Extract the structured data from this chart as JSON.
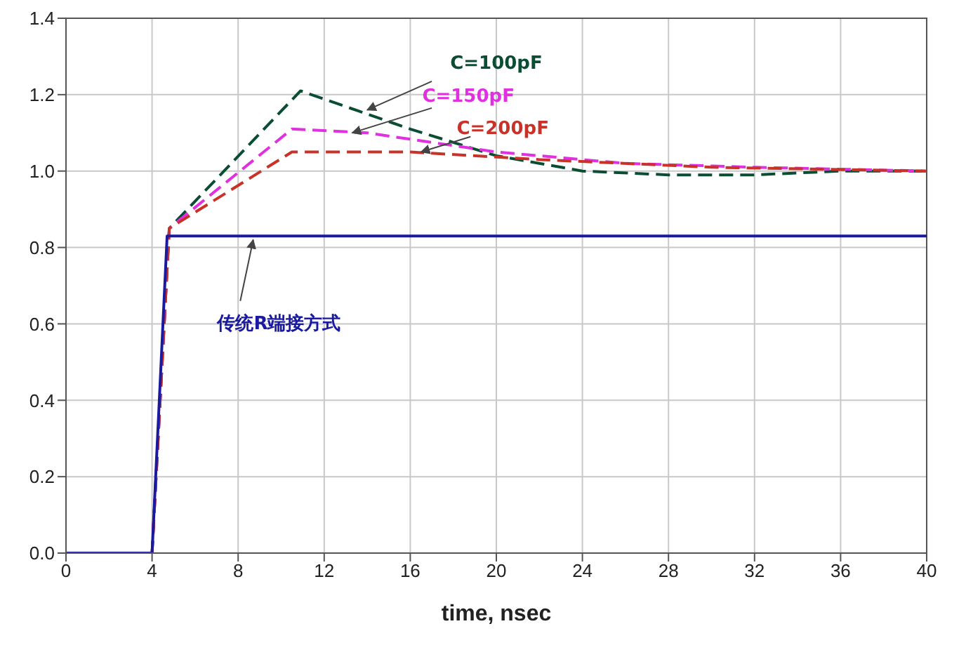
{
  "chart_data": {
    "type": "line",
    "xlabel": "time, nsec",
    "xlim": [
      0,
      40
    ],
    "xticks": [
      0,
      4,
      8,
      12,
      16,
      20,
      24,
      28,
      32,
      36,
      40
    ],
    "ylim": [
      0,
      1.4
    ],
    "yticks": [
      {
        "value": 0,
        "label": "0.0"
      },
      {
        "value": 0.2,
        "label": "0.2"
      },
      {
        "value": 0.4,
        "label": "0.4"
      },
      {
        "value": 0.6,
        "label": "0.6"
      },
      {
        "value": 0.8,
        "label": "0.8"
      },
      {
        "value": 1.0,
        "label": "1.0"
      },
      {
        "value": 1.2,
        "label": "1.2"
      },
      {
        "value": 1.4,
        "label": "1.4"
      }
    ],
    "grid": true,
    "legend": false,
    "marker": "none",
    "series": [
      {
        "name": "C=100pF",
        "color": "#0b4d33",
        "line_style": "dashed",
        "x": [
          0,
          4,
          4.8,
          10.9,
          16,
          20,
          24,
          28,
          32,
          36,
          40
        ],
        "values": [
          0,
          0,
          0.85,
          1.21,
          1.11,
          1.04,
          1.0,
          0.99,
          0.99,
          1.0,
          1.0
        ]
      },
      {
        "name": "C=150pF",
        "color": "#e030e0",
        "line_style": "dashed",
        "x": [
          0,
          4,
          4.8,
          10.5,
          14,
          20,
          26,
          32,
          40
        ],
        "values": [
          0,
          0,
          0.85,
          1.11,
          1.1,
          1.05,
          1.02,
          1.01,
          1.0
        ]
      },
      {
        "name": "C=200pF",
        "color": "#c83228",
        "line_style": "dashed",
        "x": [
          0,
          4,
          4.8,
          10.5,
          16,
          22,
          30,
          40
        ],
        "values": [
          0,
          0,
          0.85,
          1.05,
          1.05,
          1.03,
          1.01,
          1.0
        ]
      },
      {
        "name": "传统R端接方式",
        "color": "#1a1aa0",
        "line_style": "solid",
        "x": [
          0,
          4,
          4.7,
          40
        ],
        "values": [
          0,
          0,
          0.83,
          0.83
        ]
      }
    ]
  }
}
